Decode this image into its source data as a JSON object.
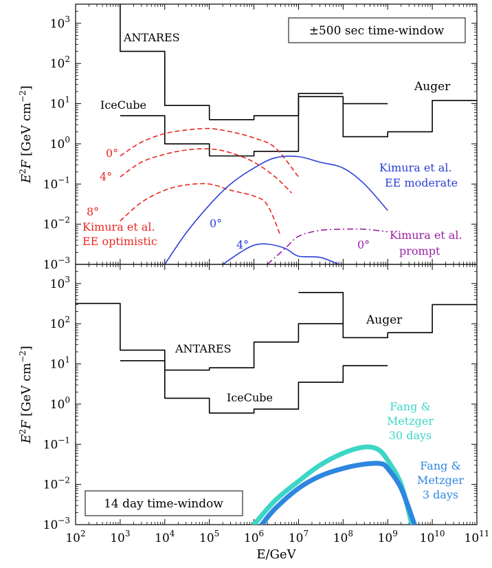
{
  "figure": {
    "x_label": "E/GeV",
    "y_label_prefix": "E",
    "y_label_sup": "2",
    "y_label_mid": "F  [GeV cm",
    "y_label_unit_sup": "−2",
    "y_label_suffix": "]",
    "x_tick_base": "10",
    "x_tick_exponents": [
      "2",
      "3",
      "4",
      "5",
      "6",
      "7",
      "8",
      "9",
      "10",
      "11"
    ],
    "y_tick_base": "10",
    "y_tick_exponents": [
      "−3",
      "−2",
      "−1",
      "0",
      "1",
      "2",
      "3"
    ]
  },
  "chart_data": [
    {
      "type": "line",
      "panel": "top",
      "title": "",
      "xlabel": "E/GeV",
      "ylabel": "E^2F [GeV cm^-2]",
      "xscale": "log",
      "yscale": "log",
      "xlim": [
        100,
        100000000000.0
      ],
      "ylim": [
        0.001,
        3000
      ],
      "legend_box": "±500 sec time-window",
      "annotations": {
        "antares": "ANTARES",
        "icecube": "IceCube",
        "auger": "Auger",
        "angle_0_red": "0°",
        "angle_4_red": "4°",
        "angle_8_red": "8°",
        "kimura_ee_opt_1": "Kimura et al.",
        "kimura_ee_opt_2": "EE optimistic",
        "kimura_ee_mod_1": "Kimura et al.",
        "kimura_ee_mod_2": "EE moderate",
        "angle_0_blue": "0°",
        "angle_4_blue": "4°",
        "kimura_prompt_1": "Kimura et al.",
        "kimura_prompt_2": "prompt",
        "angle_0_purple": "0°"
      },
      "colors": {
        "limits": "#000000",
        "ee_optimistic": "#e8271f",
        "ee_moderate": "#2b3fd6",
        "prompt": "#9b1fa6"
      },
      "series": [
        {
          "name": "ANTARES",
          "style": "step",
          "color": "#000000",
          "x": [
            1000,
            1000,
            10000,
            10000,
            100000,
            100000,
            1000000,
            1000000,
            10000000,
            10000000,
            100000000
          ],
          "y": [
            3000,
            200,
            200,
            9,
            9,
            4,
            4,
            5,
            5,
            18,
            18
          ]
        },
        {
          "name": "IceCube",
          "style": "step",
          "color": "#000000",
          "x": [
            1000,
            10000,
            10000,
            100000,
            100000,
            1000000,
            1000000,
            10000000,
            10000000,
            100000000,
            100000000,
            1000000000
          ],
          "y": [
            5,
            5,
            1.0,
            1.0,
            0.5,
            0.5,
            0.65,
            0.65,
            15,
            15,
            10,
            10
          ]
        },
        {
          "name": "Auger",
          "style": "step",
          "color": "#000000",
          "x": [
            100000000,
            100000000,
            1000000000,
            1000000000,
            10000000000,
            10000000000,
            100000000000
          ],
          "y": [
            10,
            1.5,
            1.5,
            2,
            2,
            12,
            12
          ]
        },
        {
          "name": "0°",
          "style": "dashed",
          "color": "#e8271f",
          "x": [
            1000,
            3000,
            10000,
            30000,
            100000,
            300000,
            1000000,
            3000000,
            10000000
          ],
          "y": [
            0.5,
            1.1,
            1.8,
            2.2,
            2.4,
            2.0,
            1.4,
            0.8,
            0.15
          ]
        },
        {
          "name": "4°",
          "style": "dashed",
          "color": "#e8271f",
          "x": [
            1000,
            3000,
            10000,
            30000,
            100000,
            300000,
            1000000,
            3000000,
            7000000
          ],
          "y": [
            0.15,
            0.35,
            0.55,
            0.7,
            0.75,
            0.6,
            0.35,
            0.15,
            0.06
          ]
        },
        {
          "name": "8°",
          "style": "dashed",
          "color": "#e8271f",
          "x": [
            1000,
            3000,
            10000,
            30000,
            100000,
            300000,
            1000000,
            2000000,
            4000000
          ],
          "y": [
            0.012,
            0.035,
            0.07,
            0.095,
            0.1,
            0.07,
            0.05,
            0.03,
            0.005
          ]
        },
        {
          "name": "0°",
          "style": "solid",
          "color": "#2b3fd6",
          "x": [
            10000,
            30000,
            100000,
            300000,
            1000000,
            3000000,
            10000000,
            30000000,
            100000000,
            300000000,
            1000000000
          ],
          "y": [
            0.001,
            0.006,
            0.03,
            0.1,
            0.25,
            0.45,
            0.48,
            0.35,
            0.25,
            0.1,
            0.022
          ]
        },
        {
          "name": "4°",
          "style": "solid",
          "color": "#2b3fd6",
          "x": [
            200000,
            500000,
            1000000,
            2000000,
            5000000,
            10000000,
            30000000,
            80000000
          ],
          "y": [
            0.001,
            0.002,
            0.003,
            0.0032,
            0.0025,
            0.0016,
            0.0015,
            0.001
          ]
        },
        {
          "name": "0°",
          "style": "dashdot",
          "color": "#9b1fa6",
          "x": [
            2000000,
            5000000,
            10000000,
            30000000,
            100000000,
            300000000,
            1000000000
          ],
          "y": [
            0.001,
            0.0025,
            0.005,
            0.007,
            0.0075,
            0.0075,
            0.0065
          ]
        }
      ]
    },
    {
      "type": "line",
      "panel": "bottom",
      "title": "",
      "xlabel": "E/GeV",
      "ylabel": "E^2F [GeV cm^-2]",
      "xscale": "log",
      "yscale": "log",
      "xlim": [
        100,
        100000000000.0
      ],
      "ylim": [
        0.001,
        3000
      ],
      "legend_box": "14 day time-window",
      "annotations": {
        "antares": "ANTARES",
        "icecube": "IceCube",
        "auger": "Auger",
        "fang30_1": "Fang &",
        "fang30_2": "Metzger",
        "fang30_3": "30 days",
        "fang3_1": "Fang &",
        "fang3_2": "Metzger",
        "fang3_3": "3 days"
      },
      "colors": {
        "limits": "#000000",
        "fang_30": "#3dd6c6",
        "fang_3": "#2e86de"
      },
      "series": [
        {
          "name": "ANTARES",
          "style": "step",
          "color": "#000000",
          "x": [
            100,
            1000,
            1000,
            10000,
            10000,
            100000,
            100000,
            1000000,
            1000000,
            10000000,
            10000000,
            100000000
          ],
          "y": [
            320,
            320,
            22,
            22,
            7,
            7,
            8,
            8,
            35,
            35,
            100,
            100
          ]
        },
        {
          "name": "IceCube",
          "style": "step",
          "color": "#000000",
          "x": [
            1000,
            10000,
            10000,
            100000,
            100000,
            1000000,
            1000000,
            10000000,
            10000000,
            100000000,
            100000000,
            1000000000
          ],
          "y": [
            12,
            12,
            1.4,
            1.4,
            0.6,
            0.6,
            0.75,
            0.75,
            3.5,
            3.5,
            9,
            9
          ]
        },
        {
          "name": "Auger",
          "style": "step",
          "color": "#000000",
          "x": [
            10000000,
            100000000,
            100000000,
            1000000000,
            1000000000,
            10000000000,
            10000000000,
            100000000000
          ],
          "y": [
            600,
            600,
            45,
            45,
            60,
            60,
            300,
            300
          ]
        },
        {
          "name": "Fang & Metzger 30 days",
          "style": "thick",
          "color": "#3dd6c6",
          "x": [
            1000000,
            3000000,
            10000000,
            30000000,
            100000000,
            300000000,
            600000000,
            1000000000,
            2000000000,
            3500000000
          ],
          "y": [
            0.001,
            0.004,
            0.012,
            0.03,
            0.06,
            0.085,
            0.075,
            0.04,
            0.01,
            0.001
          ]
        },
        {
          "name": "Fang & Metzger 3 days",
          "style": "thick",
          "color": "#2e86de",
          "x": [
            1500000,
            3000000,
            10000000,
            30000000,
            100000000,
            300000000,
            700000000,
            1000000000,
            2000000000,
            4000000000
          ],
          "y": [
            0.001,
            0.0025,
            0.008,
            0.016,
            0.025,
            0.032,
            0.033,
            0.025,
            0.008,
            0.001
          ]
        }
      ]
    }
  ]
}
